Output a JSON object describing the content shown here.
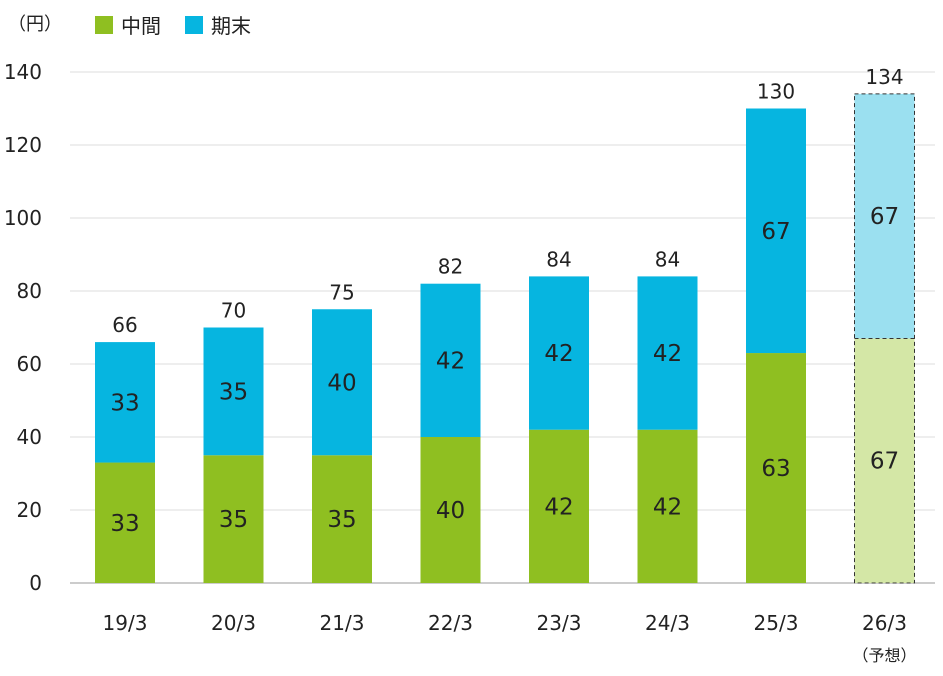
{
  "chart_data": {
    "type": "bar",
    "stacked": true,
    "unit_label": "（円）",
    "categories": [
      "19/3",
      "20/3",
      "21/3",
      "22/3",
      "23/3",
      "24/3",
      "25/3",
      "26/3"
    ],
    "category_note": {
      "index": 7,
      "text": "（予想）"
    },
    "series": [
      {
        "name": "中間",
        "color": "#8fbf21",
        "values": [
          33,
          35,
          35,
          40,
          42,
          42,
          63,
          67
        ]
      },
      {
        "name": "期末",
        "color": "#06b5e0",
        "values": [
          33,
          35,
          40,
          42,
          42,
          42,
          67,
          67
        ]
      }
    ],
    "totals": [
      66,
      70,
      75,
      82,
      84,
      84,
      130,
      134
    ],
    "forecast": {
      "index": 7,
      "colors": [
        "#d4e7a6",
        "#9be0f0"
      ],
      "border": "dashed"
    },
    "ylim": [
      0,
      140
    ],
    "yticks": [
      0,
      20,
      40,
      60,
      80,
      100,
      120,
      140
    ],
    "grid": true,
    "legend_position": "top-left"
  }
}
